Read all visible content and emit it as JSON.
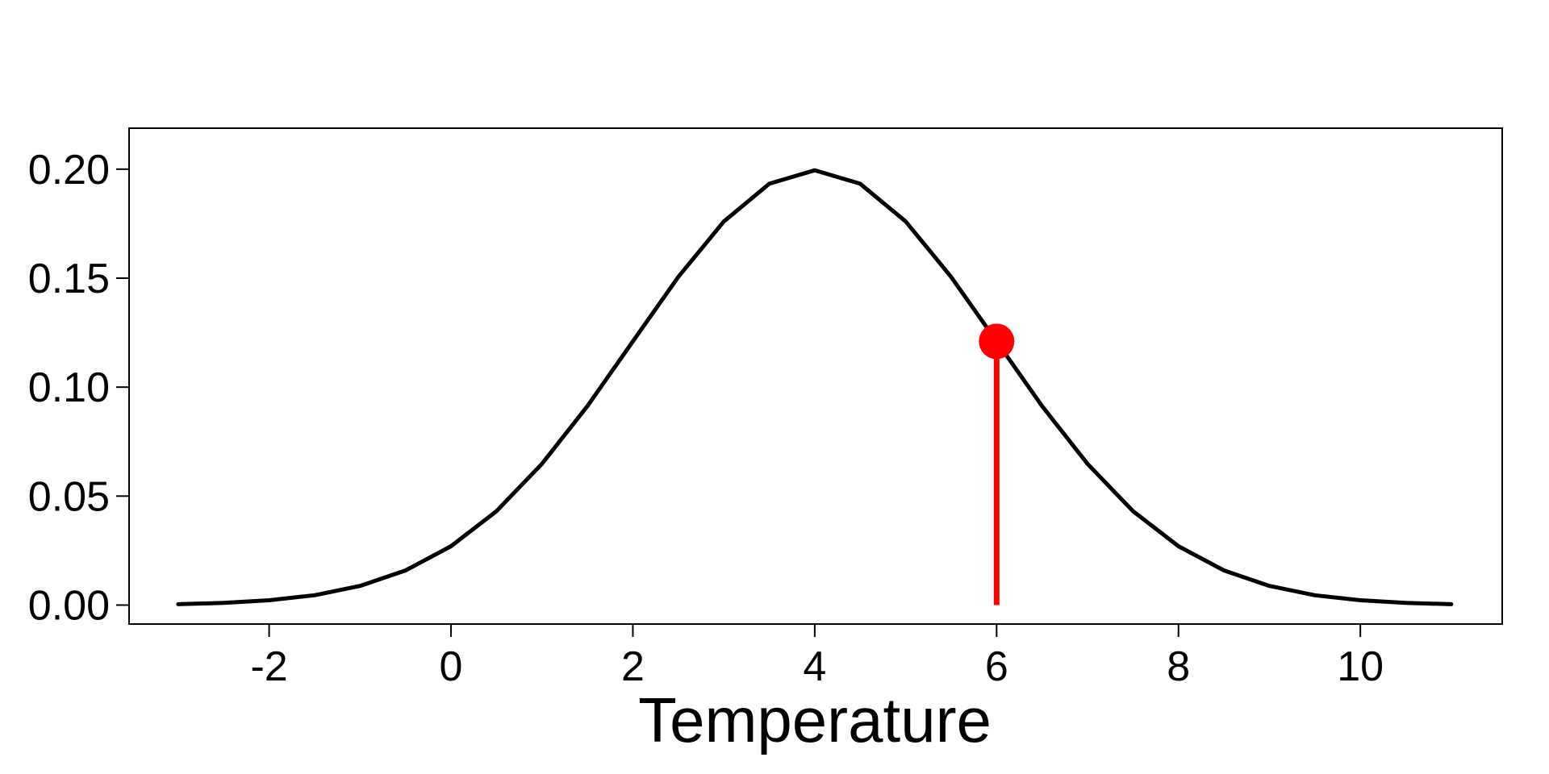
{
  "chart_data": {
    "type": "line",
    "x_label": "Temperature",
    "x": [
      -3,
      -2.5,
      -2,
      -1.5,
      -1,
      -0.5,
      0,
      0.5,
      1,
      1.5,
      2,
      2.5,
      3,
      3.5,
      4,
      4.5,
      5,
      5.5,
      6,
      6.5,
      7,
      7.5,
      8,
      8.5,
      9,
      9.5,
      10,
      10.5,
      11
    ],
    "values": [
      0.0004,
      0.001,
      0.0022,
      0.0045,
      0.0088,
      0.0159,
      0.027,
      0.0431,
      0.0648,
      0.0913,
      0.121,
      0.1506,
      0.176,
      0.1933,
      0.1995,
      0.1933,
      0.176,
      0.1506,
      0.121,
      0.0913,
      0.0648,
      0.0431,
      0.027,
      0.0159,
      0.0088,
      0.0045,
      0.0022,
      0.001,
      0.0004
    ],
    "color": "#000000",
    "highlight": {
      "x": 6,
      "y": 0.121,
      "color": "#ff0000"
    },
    "xlim": [
      -3.54,
      11.56
    ],
    "xticks": [
      -2,
      0,
      2,
      4,
      6,
      8,
      10
    ],
    "ylim": [
      -0.0087,
      0.2188
    ],
    "yticks": [
      {
        "value": 0,
        "label": "0.00"
      },
      {
        "value": 0.05,
        "label": "0.05"
      },
      {
        "value": 0.1,
        "label": "0.10"
      },
      {
        "value": 0.15,
        "label": "0.15"
      },
      {
        "value": 0.2,
        "label": "0.20"
      }
    ]
  }
}
